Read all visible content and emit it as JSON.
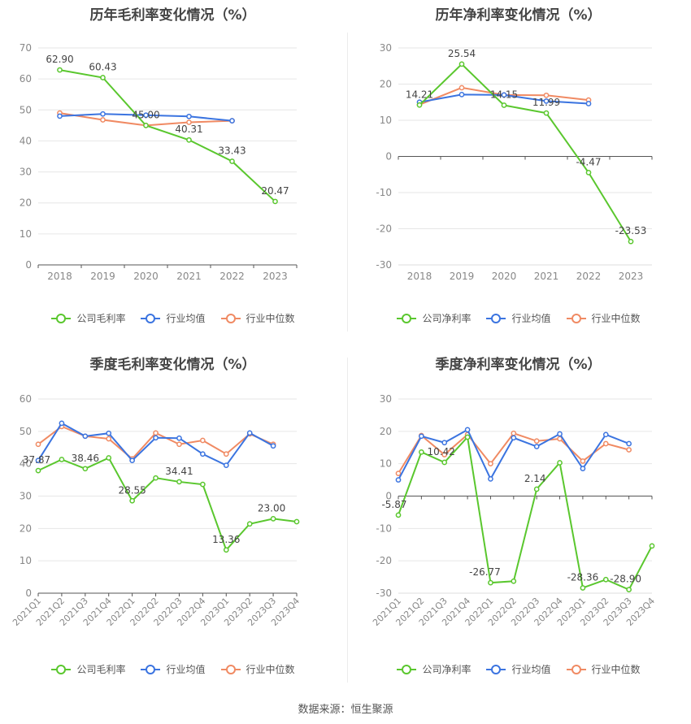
{
  "series_names": [
    "公司毛利率",
    "行业均值",
    "行业中位数"
  ],
  "colors": {
    "company": "#5ac72e",
    "avg": "#3b74e0",
    "median": "#f08a63"
  },
  "source_text": "数据来源：恒生聚源",
  "chart_data": [
    {
      "type": "line",
      "title": "历年毛利率变化情况（%）",
      "categories": [
        "2018",
        "2019",
        "2020",
        "2021",
        "2022",
        "2023"
      ],
      "ylim": [
        0,
        70
      ],
      "yticks": [
        0,
        10,
        20,
        30,
        40,
        50,
        60,
        70
      ],
      "legend": [
        "公司毛利率",
        "行业均值",
        "行业中位数"
      ],
      "series": [
        {
          "name": "公司毛利率",
          "values": [
            62.9,
            60.43,
            45.0,
            40.31,
            33.43,
            20.47
          ]
        },
        {
          "name": "行业均值",
          "values": [
            48.0,
            48.7,
            48.3,
            47.9,
            46.5,
            null
          ]
        },
        {
          "name": "行业中位数",
          "values": [
            49.0,
            46.8,
            45.0,
            46.0,
            46.5,
            null
          ]
        }
      ],
      "labels": [
        "62.90",
        "60.43",
        "45.00",
        "40.31",
        "33.43",
        "20.47"
      ]
    },
    {
      "type": "line",
      "title": "历年净利率变化情况（%）",
      "categories": [
        "2018",
        "2019",
        "2020",
        "2021",
        "2022",
        "2023"
      ],
      "ylim": [
        -30,
        30
      ],
      "yticks": [
        -30,
        -20,
        -10,
        0,
        10,
        20,
        30
      ],
      "legend": [
        "公司净利率",
        "行业均值",
        "行业中位数"
      ],
      "series": [
        {
          "name": "公司净利率",
          "values": [
            14.21,
            25.54,
            14.15,
            11.99,
            -4.47,
            -23.53
          ]
        },
        {
          "name": "行业均值",
          "values": [
            15.0,
            17.1,
            17.0,
            15.3,
            14.6,
            null
          ]
        },
        {
          "name": "行业中位数",
          "values": [
            14.3,
            19.0,
            17.0,
            16.9,
            15.6,
            null
          ]
        }
      ],
      "labels": [
        "14.21",
        "25.54",
        "14.15",
        "11.99",
        "-4.47",
        "-23.53"
      ]
    },
    {
      "type": "line",
      "title": "季度毛利率变化情况（%）",
      "categories": [
        "2021Q1",
        "2021Q2",
        "2021Q3",
        "2021Q4",
        "2022Q1",
        "2022Q2",
        "2022Q3",
        "2022Q4",
        "2023Q1",
        "2023Q2",
        "2023Q3",
        "2023Q4"
      ],
      "ylim": [
        0,
        60
      ],
      "yticks": [
        0,
        10,
        20,
        30,
        40,
        50,
        60
      ],
      "legend": [
        "公司毛利率",
        "行业均值",
        "行业中位数"
      ],
      "series": [
        {
          "name": "公司毛利率",
          "values": [
            37.87,
            41.3,
            38.46,
            41.8,
            28.55,
            35.6,
            34.41,
            33.6,
            13.36,
            21.4,
            23.0,
            22.1
          ]
        },
        {
          "name": "行业均值",
          "values": [
            41.0,
            52.5,
            48.5,
            49.4,
            41.0,
            48.0,
            47.9,
            43.0,
            39.5,
            49.5,
            45.5,
            null
          ]
        },
        {
          "name": "行业中位数",
          "values": [
            46.0,
            51.5,
            48.5,
            47.7,
            41.5,
            49.5,
            46.0,
            47.2,
            43.0,
            49.2,
            46.0,
            null
          ]
        }
      ],
      "labels": [
        "37.87",
        null,
        "38.46",
        null,
        "28.55",
        null,
        "34.41",
        null,
        "13.36",
        null,
        "23.00",
        null
      ]
    },
    {
      "type": "line",
      "title": "季度净利率变化情况（%）",
      "categories": [
        "2021Q1",
        "2021Q2",
        "2021Q3",
        "2021Q4",
        "2022Q1",
        "2022Q2",
        "2022Q3",
        "2022Q4",
        "2023Q1",
        "2023Q2",
        "2023Q3",
        "2023Q4"
      ],
      "ylim": [
        -30,
        30
      ],
      "yticks": [
        -30,
        -20,
        -10,
        0,
        10,
        20,
        30
      ],
      "legend": [
        "公司净利率",
        "行业均值",
        "行业中位数"
      ],
      "series": [
        {
          "name": "公司净利率",
          "values": [
            -5.87,
            13.6,
            10.42,
            18.2,
            -26.77,
            -26.3,
            2.14,
            10.3,
            -28.36,
            -25.8,
            -28.9,
            -15.4
          ]
        },
        {
          "name": "行业均值",
          "values": [
            5.0,
            18.5,
            16.5,
            20.5,
            5.3,
            18.0,
            15.3,
            19.2,
            8.5,
            19.0,
            16.2,
            null
          ]
        },
        {
          "name": "行业中位数",
          "values": [
            7.0,
            18.7,
            12.8,
            19.0,
            10.0,
            19.4,
            17.0,
            17.7,
            10.8,
            16.2,
            14.3,
            null
          ]
        }
      ],
      "labels": [
        "-5.87",
        null,
        "10.42",
        null,
        "-26.77",
        null,
        "2.14",
        null,
        "-28.36",
        null,
        "-28.90",
        null
      ]
    }
  ]
}
